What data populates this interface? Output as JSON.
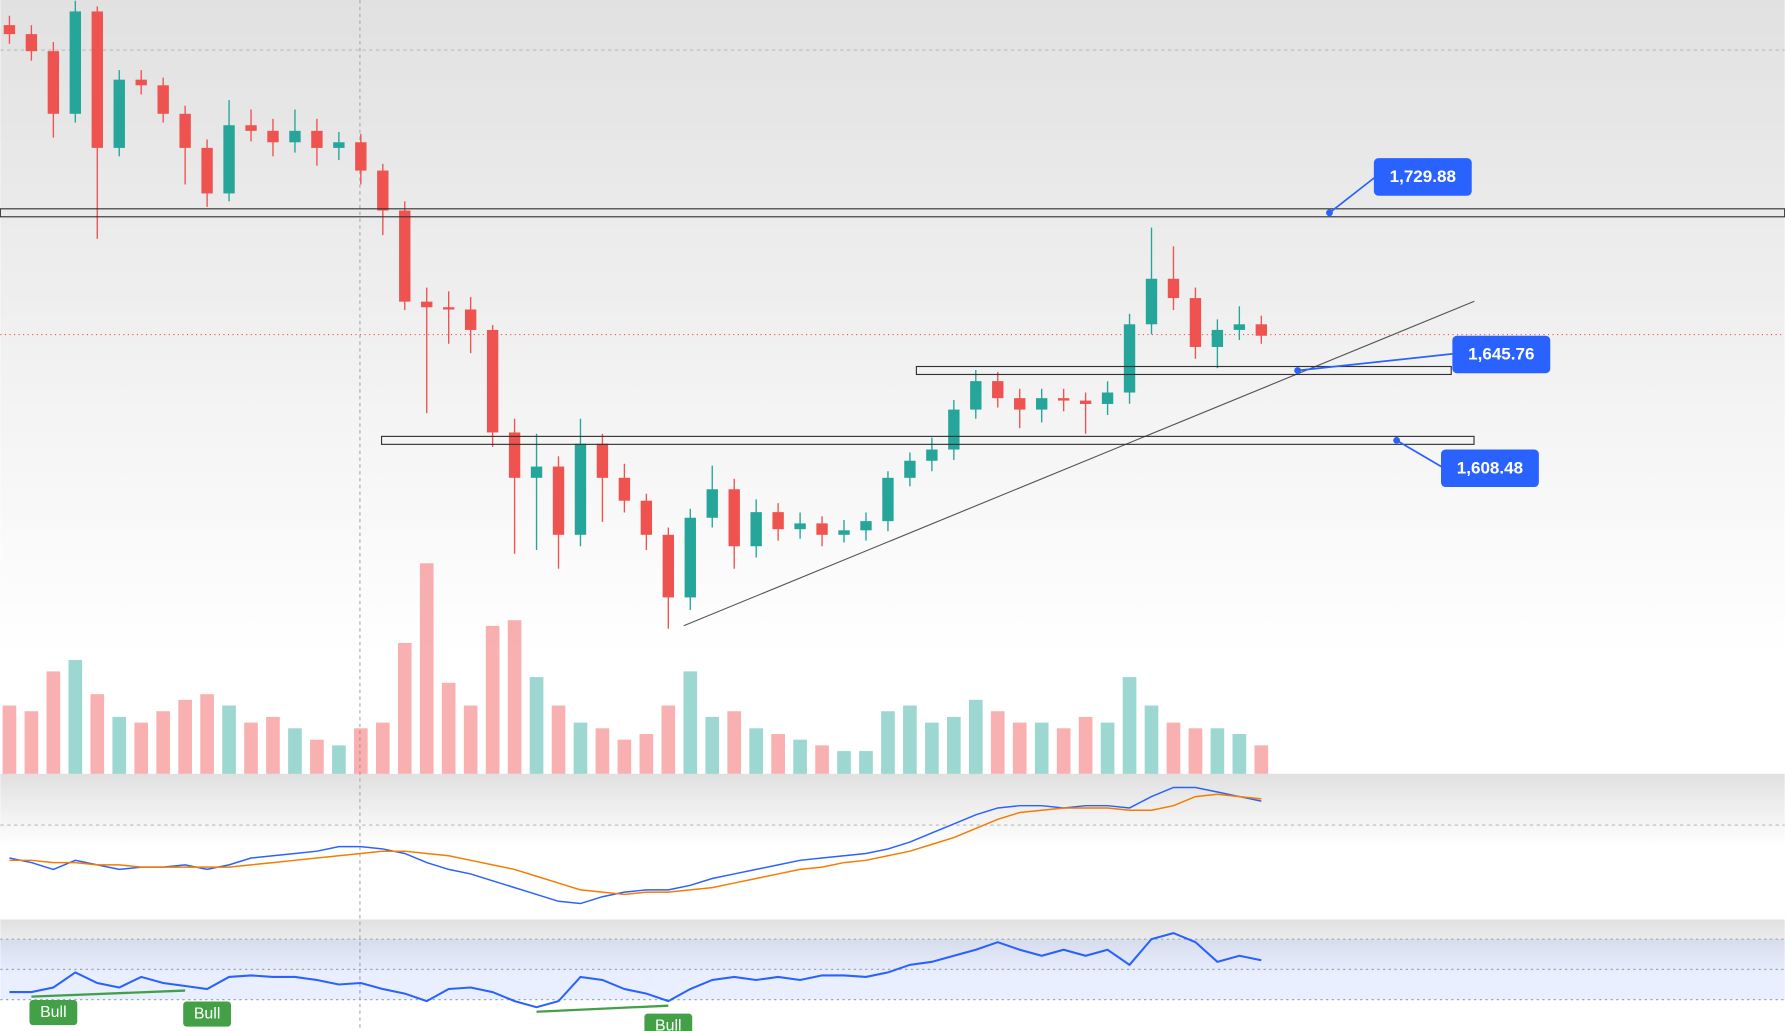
{
  "chart_data": {
    "type": "candlestick",
    "open": [
      1830.0,
      1825.2,
      1816.1,
      1782.7,
      1837.3,
      1764.5,
      1800.9,
      1797.9,
      1782.7,
      1764.5,
      1740.2,
      1776.6,
      1773.6,
      1767.5,
      1773.6,
      1764.5,
      1767.5,
      1752.4,
      1731.1,
      1682.5,
      1679.5,
      1678.3,
      1667.4,
      1612.7,
      1588.5,
      1594.5,
      1558.1,
      1606.7,
      1588.5,
      1576.3,
      1558.1,
      1524.7,
      1567.2,
      1582.4,
      1552.0,
      1570.2,
      1561.1,
      1564.2,
      1558.1,
      1560.5,
      1565.4,
      1588.5,
      1597.6,
      1603.6,
      1624.9,
      1640.1,
      1631.0,
      1624.9,
      1631.0,
      1629.7,
      1627.9,
      1634.0,
      1670.4,
      1694.7,
      1684.4,
      1658.3,
      1667.4,
      1670.4
    ],
    "high": [
      1835,
      1830,
      1821,
      1843,
      1840,
      1806,
      1806,
      1802,
      1787,
      1769,
      1790,
      1785,
      1780,
      1785,
      1780,
      1773,
      1772,
      1756,
      1736,
      1690,
      1688,
      1685,
      1670,
      1620,
      1612,
      1600,
      1620,
      1612,
      1596,
      1580,
      1562,
      1572,
      1595,
      1588,
      1577,
      1575,
      1570,
      1568,
      1566,
      1570,
      1592,
      1602,
      1610,
      1630,
      1646,
      1645,
      1636,
      1636,
      1636,
      1634,
      1640,
      1676,
      1722,
      1712,
      1690,
      1673,
      1680,
      1675
    ],
    "low": [
      1820,
      1811,
      1770,
      1778,
      1716,
      1760,
      1793,
      1778,
      1745,
      1733,
      1736,
      1768,
      1760,
      1762,
      1755,
      1758,
      1745,
      1718,
      1678,
      1623,
      1660,
      1655,
      1605,
      1548,
      1550,
      1540,
      1552,
      1565,
      1570,
      1550,
      1508,
      1518,
      1562,
      1540,
      1546,
      1555,
      1556,
      1552,
      1554,
      1555,
      1560,
      1584,
      1592,
      1598,
      1620,
      1626,
      1615,
      1618,
      1624,
      1612,
      1622,
      1628,
      1665,
      1678,
      1652,
      1647,
      1662,
      1660
    ],
    "close": [
      1825.2,
      1816.1,
      1782.7,
      1837.3,
      1764.5,
      1800.9,
      1797.9,
      1782.7,
      1764.5,
      1740.2,
      1776.6,
      1773.6,
      1767.5,
      1773.6,
      1764.5,
      1767.5,
      1752.4,
      1731.1,
      1682.5,
      1679.5,
      1678.3,
      1667.4,
      1612.7,
      1588.5,
      1594.5,
      1558.1,
      1606.7,
      1588.5,
      1576.3,
      1558.1,
      1524.7,
      1567.2,
      1582.4,
      1552.0,
      1570.2,
      1561.1,
      1564.2,
      1558.1,
      1560.5,
      1565.4,
      1588.5,
      1597.6,
      1603.6,
      1624.9,
      1640.1,
      1631.0,
      1624.9,
      1631.0,
      1629.7,
      1627.9,
      1634.0,
      1670.4,
      1694.7,
      1684.4,
      1658.3,
      1667.4,
      1670.4,
      1664.3
    ],
    "ylim": [
      1430.6,
      1843.4
    ],
    "up_color": "#26a69a",
    "down_color": "#ef5350",
    "levels": [
      {
        "value": 1729.88,
        "label": "1,729.88"
      },
      {
        "value": 1645.76,
        "label": "1,645.76"
      },
      {
        "value": 1608.48,
        "label": "1,608.48"
      }
    ],
    "trendline": {
      "x": [
        30.7,
        66.7
      ],
      "y": [
        1509.6,
        1682.7
      ]
    },
    "volume": {
      "values": [
        60,
        55,
        90,
        100,
        70,
        50,
        45,
        55,
        65,
        70,
        60,
        45,
        50,
        40,
        30,
        25,
        40,
        45,
        115,
        185,
        80,
        60,
        130,
        135,
        85,
        60,
        45,
        40,
        30,
        35,
        60,
        90,
        50,
        55,
        40,
        35,
        30,
        25,
        20,
        20,
        55,
        60,
        45,
        50,
        65,
        55,
        45,
        45,
        40,
        50,
        45,
        85,
        60,
        45,
        40,
        40,
        35,
        25
      ],
      "ylim": [
        0,
        200
      ]
    },
    "macd": {
      "values": [
        -15,
        -17,
        -20,
        -16,
        -18,
        -20,
        -19,
        -19,
        -18,
        -20,
        -18,
        -15,
        -14,
        -13,
        -12,
        -10,
        -10,
        -11,
        -13,
        -17,
        -20,
        -22,
        -25,
        -28,
        -31,
        -34,
        -35,
        -32,
        -30,
        -29,
        -29,
        -27,
        -24,
        -22,
        -20,
        -18,
        -16,
        -15,
        -14,
        -13,
        -11,
        -8,
        -4,
        0,
        4,
        7,
        8,
        8,
        7,
        8,
        8,
        7,
        12,
        16,
        16,
        14,
        12,
        10
      ],
      "signal": [
        -16,
        -16,
        -17,
        -17,
        -18,
        -18,
        -19,
        -19,
        -19,
        -19,
        -19,
        -18,
        -17,
        -16,
        -15,
        -14,
        -13,
        -12,
        -12,
        -13,
        -14,
        -16,
        -18,
        -20,
        -23,
        -26,
        -29,
        -30,
        -31,
        -30,
        -30,
        -29,
        -28,
        -26,
        -24,
        -22,
        -20,
        -19,
        -17,
        -16,
        -14,
        -12,
        -9,
        -6,
        -2,
        2,
        5,
        6,
        7,
        7,
        7,
        6,
        6,
        8,
        12,
        13,
        12,
        11
      ],
      "ylim": [
        -42,
        22
      ],
      "colors": [
        "#2962ff",
        "#f57c00"
      ]
    },
    "rsi": {
      "values": [
        35,
        35,
        38,
        48,
        41,
        38,
        45,
        41,
        39,
        37,
        45,
        46,
        45,
        45,
        43,
        40,
        41,
        37,
        34,
        29,
        37,
        38,
        35,
        29,
        25,
        29,
        45,
        43,
        37,
        34,
        29,
        37,
        43,
        45,
        43,
        45,
        43,
        46,
        46,
        45,
        48,
        53,
        55,
        59,
        63,
        68,
        63,
        59,
        63,
        59,
        63,
        53,
        70,
        74,
        68,
        55,
        59,
        56
      ],
      "ylim": [
        10,
        83
      ],
      "levels": [
        30,
        50,
        70
      ],
      "color": "#2962ff",
      "divergences": [
        [
          1,
          8
        ],
        [
          24,
          30
        ]
      ],
      "annotations": [
        {
          "text": "Bull",
          "index": 2
        },
        {
          "text": "Bull",
          "index": 9
        },
        {
          "text": "Bull",
          "index": 30
        }
      ]
    }
  }
}
